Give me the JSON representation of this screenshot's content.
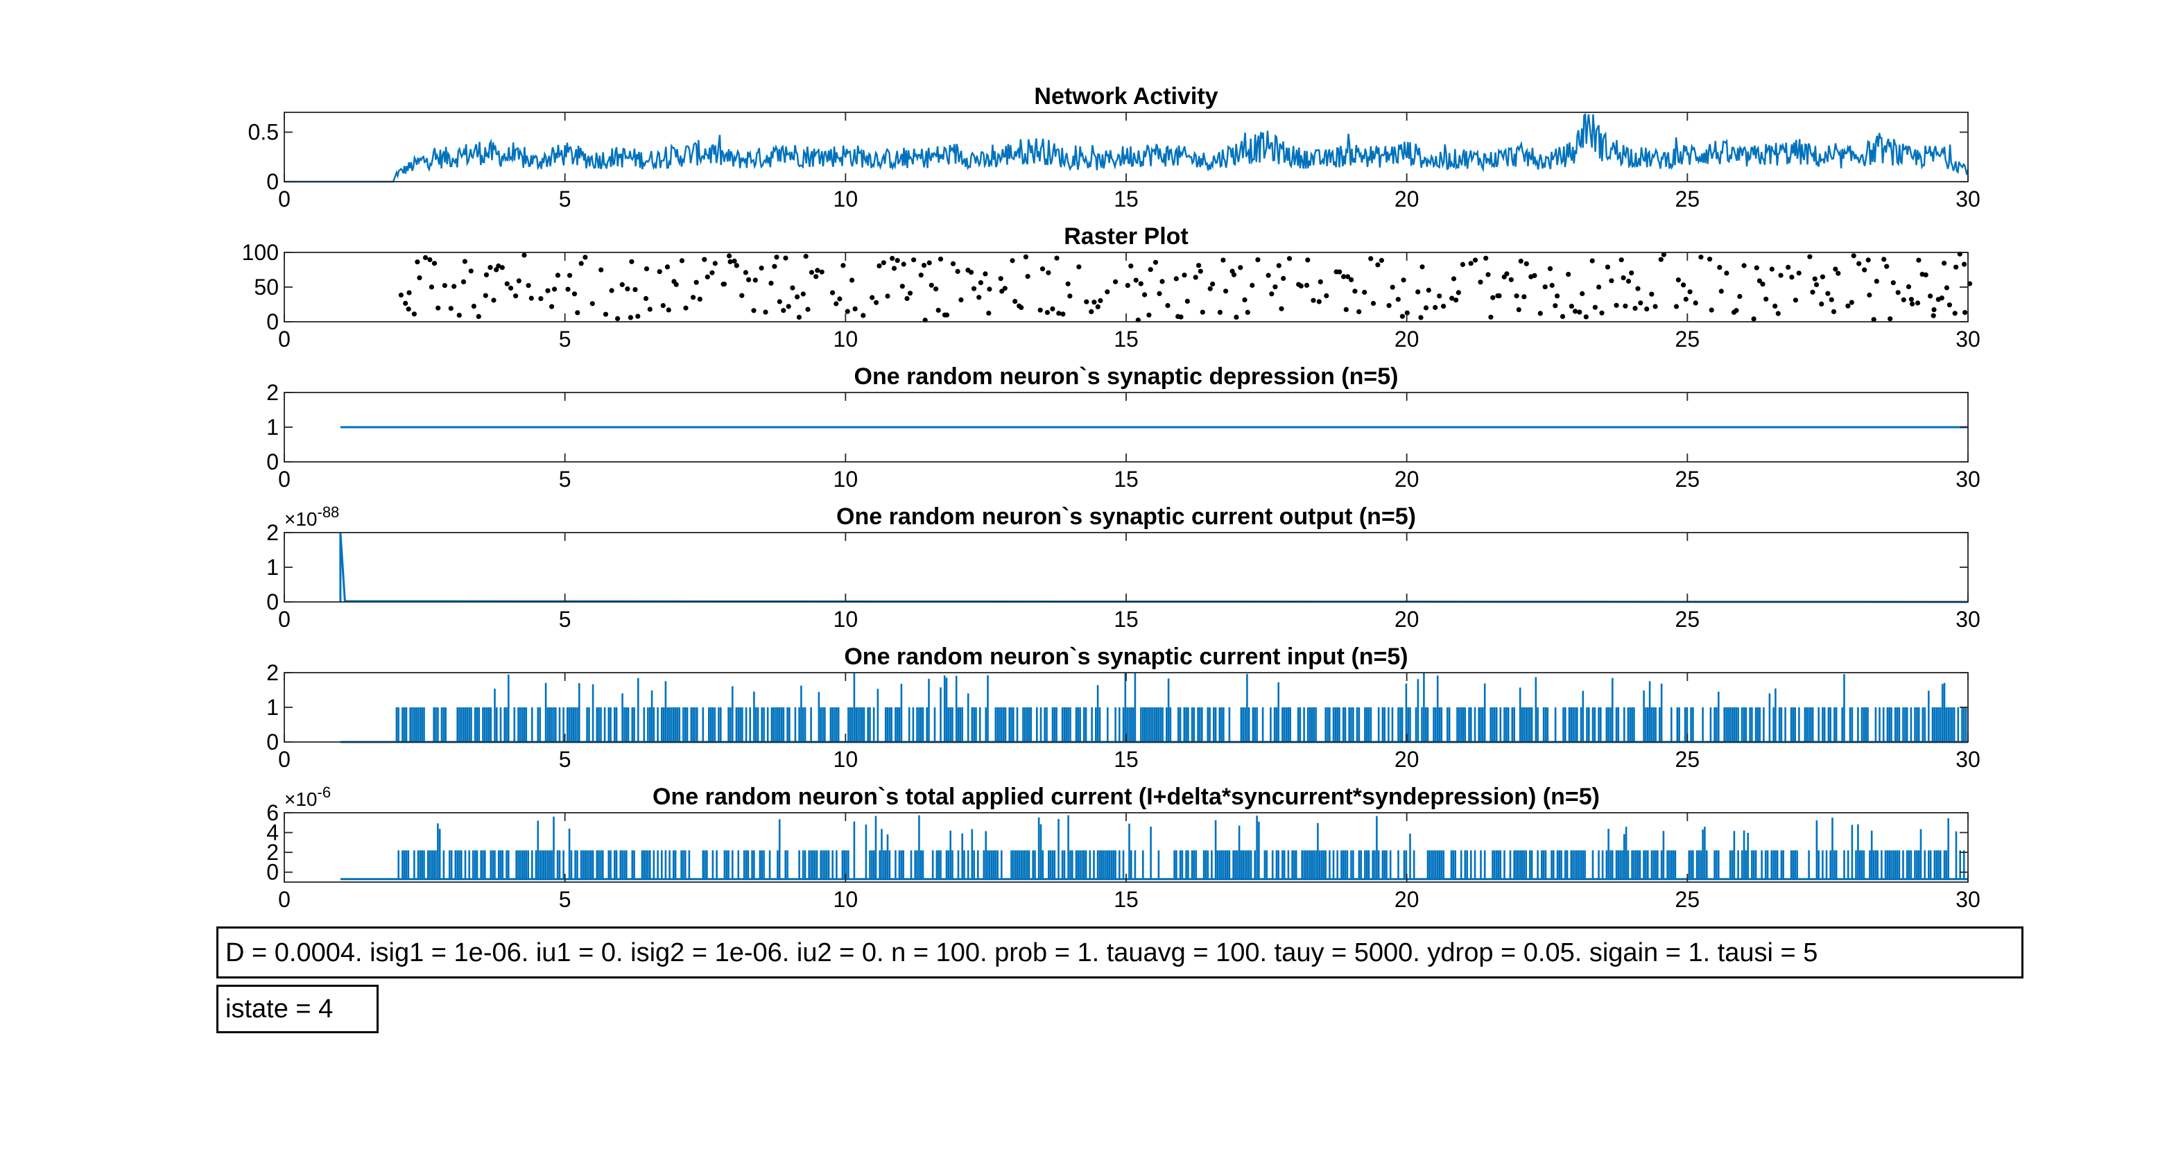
{
  "colors": {
    "line": "#0072BD",
    "dots": "#000000",
    "axes": "#262626"
  },
  "chart_data": [
    {
      "type": "line",
      "title": "Network Activity",
      "xlim": [
        0,
        30
      ],
      "ylim": [
        0,
        0.7
      ],
      "xticks": [
        0,
        5,
        10,
        15,
        20,
        25,
        30
      ],
      "yticks": [
        0,
        0.5
      ],
      "ytick_labels": [
        "0",
        "0.5"
      ],
      "series_note": "noisy activity trace, zero until t≈2, then fluctuating roughly 0–0.55",
      "x": [
        0,
        1,
        1.95,
        2.0,
        2.5,
        3,
        3.5,
        4,
        4.5,
        5,
        5.5,
        6,
        6.5,
        7,
        7.5,
        8,
        8.5,
        9,
        9.5,
        10,
        10.5,
        11,
        11.5,
        12,
        12.5,
        13,
        13.5,
        14,
        14.5,
        15,
        15.5,
        16,
        16.5,
        17,
        17.5,
        18,
        18.5,
        19,
        19.5,
        20,
        20.5,
        21,
        21.5,
        22,
        22.5,
        23,
        23.2,
        23.5,
        24,
        24.5,
        25,
        25.5,
        26,
        26.5,
        27,
        27.5,
        28,
        28.5,
        29,
        29.5,
        30
      ],
      "y": [
        0,
        0,
        0.01,
        0.08,
        0.22,
        0.25,
        0.3,
        0.25,
        0.2,
        0.28,
        0.22,
        0.25,
        0.22,
        0.26,
        0.3,
        0.22,
        0.24,
        0.28,
        0.25,
        0.27,
        0.24,
        0.22,
        0.25,
        0.28,
        0.2,
        0.3,
        0.32,
        0.22,
        0.2,
        0.26,
        0.28,
        0.25,
        0.2,
        0.3,
        0.36,
        0.25,
        0.22,
        0.28,
        0.25,
        0.3,
        0.2,
        0.24,
        0.22,
        0.27,
        0.2,
        0.3,
        0.62,
        0.35,
        0.26,
        0.22,
        0.27,
        0.3,
        0.24,
        0.28,
        0.3,
        0.22,
        0.26,
        0.32,
        0.24,
        0.27,
        0.12
      ]
    },
    {
      "type": "scatter",
      "title": "Raster Plot",
      "xlim": [
        0,
        30
      ],
      "ylim": [
        0,
        100
      ],
      "xticks": [
        0,
        5,
        10,
        15,
        20,
        25,
        30
      ],
      "yticks": [
        0,
        50,
        100
      ],
      "ytick_labels": [
        "0",
        "50",
        "100"
      ],
      "series_note": "spike raster, ~5 neurons' spikes each small time window from t≈2 to 30, neuron index 1–100"
    },
    {
      "type": "line",
      "title": "One random neuron`s synaptic depression (n=5)",
      "xlim": [
        0,
        30
      ],
      "ylim": [
        0,
        2
      ],
      "xticks": [
        0,
        5,
        10,
        15,
        20,
        25,
        30
      ],
      "yticks": [
        0,
        1,
        2
      ],
      "ytick_labels": [
        "0",
        "1",
        "2"
      ],
      "x": [
        1,
        30
      ],
      "y": [
        1,
        1
      ]
    },
    {
      "type": "line",
      "title": "One random neuron`s synaptic current output (n=5)",
      "xlim": [
        0,
        30
      ],
      "ylim": [
        0,
        2
      ],
      "xticks": [
        0,
        5,
        10,
        15,
        20,
        25,
        30
      ],
      "yticks": [
        0,
        1,
        2
      ],
      "ytick_labels": [
        "0",
        "1",
        "2"
      ],
      "y_exponent": "-88",
      "x": [
        1.0,
        1.0,
        1.08,
        30
      ],
      "y": [
        0,
        2.0,
        0.02,
        0
      ]
    },
    {
      "type": "line",
      "title": "One random neuron`s synaptic current input (n=5)",
      "xlim": [
        0,
        30
      ],
      "ylim": [
        0,
        2
      ],
      "xticks": [
        0,
        5,
        10,
        15,
        20,
        25,
        30
      ],
      "yticks": [
        0,
        1,
        2
      ],
      "ytick_labels": [
        "0",
        "1",
        "2"
      ],
      "series_note": "spike trains: baseline 0 from t=1, spikes to 1 (occasionally 2) from t≈2 onward"
    },
    {
      "type": "line",
      "title": "One random neuron`s total applied current (I+delta*syncurrent*syndepression) (n=5)",
      "xlim": [
        0,
        30
      ],
      "ylim": [
        -1,
        6
      ],
      "xticks": [
        0,
        5,
        10,
        15,
        20,
        25,
        30
      ],
      "yticks": [
        0,
        2,
        4,
        6
      ],
      "ytick_labels": [
        "0",
        "2",
        "4",
        "6"
      ],
      "y_exponent": "-6",
      "series_note": "baseline ≈ -0.7e-6 from t=1, spikes to ≈2.2e-6 (occasionally up to ≈6e-6) from t≈2"
    }
  ],
  "params_text": "D = 0.0004. isig1 = 1e-06. iu1 = 0. isig2 = 1e-06. iu2 = 0. n = 100. prob = 1. tauavg = 100. tauy = 5000. ydrop = 0.05. sigain = 1. tausi = 5",
  "istate_text": "istate = 4"
}
